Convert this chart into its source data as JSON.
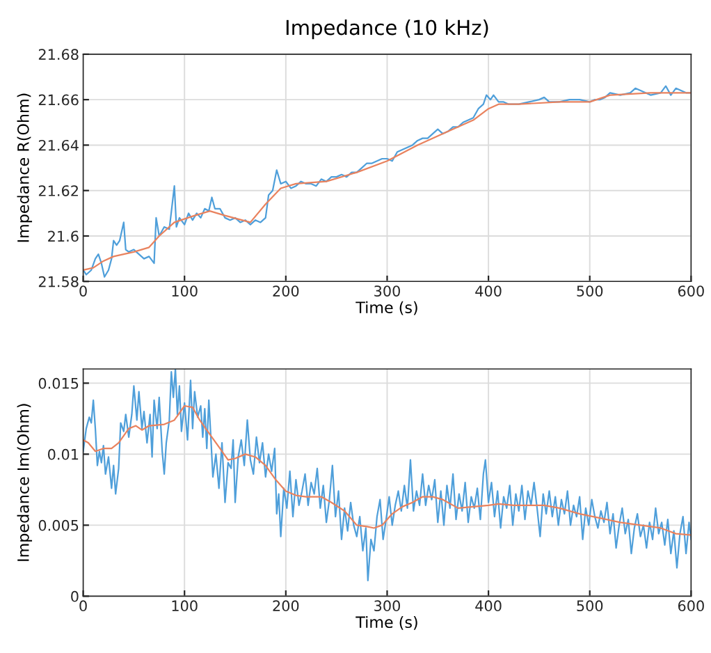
{
  "chart_data": [
    {
      "type": "line",
      "title": "Impedance (10 kHz)",
      "xlabel": "Time (s)",
      "ylabel": "Impedance R(Ohm)",
      "xlim": [
        0,
        600
      ],
      "xticks": [
        0,
        100,
        200,
        300,
        400,
        500,
        600
      ],
      "ylim": [
        21.58,
        21.68
      ],
      "yticks": [
        21.58,
        21.6,
        21.62,
        21.64,
        21.66,
        21.68
      ],
      "grid": true,
      "series": [
        {
          "color": "#4f9fda",
          "x": [
            0,
            3,
            8,
            12,
            15,
            18,
            21,
            25,
            28,
            30,
            33,
            36,
            40,
            42,
            45,
            50,
            55,
            60,
            65,
            70,
            72,
            75,
            80,
            85,
            90,
            92,
            95,
            100,
            104,
            108,
            112,
            116,
            120,
            124,
            127,
            130,
            135,
            140,
            145,
            150,
            155,
            160,
            165,
            170,
            175,
            180,
            183,
            187,
            191,
            195,
            200,
            205,
            210,
            215,
            220,
            225,
            230,
            235,
            240,
            245,
            250,
            255,
            260,
            265,
            270,
            275,
            280,
            285,
            290,
            295,
            300,
            305,
            310,
            315,
            320,
            325,
            330,
            335,
            340,
            345,
            350,
            355,
            360,
            365,
            370,
            375,
            380,
            385,
            390,
            395,
            398,
            402,
            405,
            410,
            415,
            420,
            430,
            440,
            450,
            455,
            460,
            470,
            480,
            490,
            500,
            505,
            510,
            515,
            520,
            530,
            540,
            545,
            550,
            560,
            570,
            575,
            580,
            585,
            590,
            595,
            600
          ],
          "values": [
            21.585,
            21.583,
            21.585,
            21.59,
            21.592,
            21.588,
            21.582,
            21.585,
            21.59,
            21.598,
            21.596,
            21.598,
            21.606,
            21.594,
            21.593,
            21.594,
            21.592,
            21.59,
            21.591,
            21.588,
            21.608,
            21.6,
            21.604,
            21.603,
            21.622,
            21.604,
            21.608,
            21.605,
            21.61,
            21.607,
            21.61,
            21.608,
            21.612,
            21.611,
            21.617,
            21.612,
            21.612,
            21.608,
            21.607,
            21.608,
            21.606,
            21.607,
            21.605,
            21.607,
            21.606,
            21.608,
            21.618,
            21.62,
            21.629,
            21.623,
            21.624,
            21.621,
            21.622,
            21.624,
            21.623,
            21.623,
            21.622,
            21.625,
            21.624,
            21.626,
            21.626,
            21.627,
            21.626,
            21.628,
            21.628,
            21.63,
            21.632,
            21.632,
            21.633,
            21.634,
            21.634,
            21.633,
            21.637,
            21.638,
            21.639,
            21.64,
            21.642,
            21.643,
            21.643,
            21.645,
            21.647,
            21.645,
            21.646,
            21.648,
            21.648,
            21.65,
            21.651,
            21.652,
            21.656,
            21.658,
            21.662,
            21.66,
            21.662,
            21.659,
            21.659,
            21.658,
            21.658,
            21.659,
            21.66,
            21.661,
            21.659,
            21.659,
            21.66,
            21.66,
            21.659,
            21.66,
            21.66,
            21.661,
            21.663,
            21.662,
            21.663,
            21.665,
            21.664,
            21.662,
            21.663,
            21.666,
            21.662,
            21.665,
            21.664,
            21.663,
            21.663
          ]
        },
        {
          "color": "#e9825e",
          "x": [
            0,
            10,
            20,
            30,
            50,
            65,
            75,
            90,
            110,
            125,
            140,
            165,
            180,
            195,
            210,
            240,
            270,
            300,
            330,
            360,
            385,
            400,
            410,
            430,
            470,
            500,
            520,
            560,
            600
          ],
          "values": [
            21.585,
            21.586,
            21.589,
            21.591,
            21.593,
            21.595,
            21.6,
            21.606,
            21.609,
            21.611,
            21.609,
            21.606,
            21.614,
            21.621,
            21.623,
            21.624,
            21.628,
            21.633,
            21.64,
            21.646,
            21.651,
            21.656,
            21.658,
            21.658,
            21.659,
            21.659,
            21.662,
            21.663,
            21.663
          ]
        }
      ]
    },
    {
      "type": "line",
      "xlabel": "Time (s)",
      "ylabel": "Impedance Im(Ohm)",
      "xlim": [
        0,
        600
      ],
      "xticks": [
        0,
        100,
        200,
        300,
        400,
        500,
        600
      ],
      "ylim": [
        0,
        0.016
      ],
      "yticks": [
        0,
        0.005,
        0.01,
        0.015
      ],
      "grid": true,
      "series": [
        {
          "color": "#4f9fda",
          "x": [
            0,
            3,
            6,
            8,
            10,
            12,
            14,
            16,
            18,
            20,
            22,
            25,
            28,
            30,
            32,
            35,
            37,
            40,
            42,
            45,
            48,
            50,
            53,
            55,
            58,
            60,
            63,
            66,
            68,
            70,
            73,
            75,
            78,
            80,
            82,
            85,
            87,
            89,
            91,
            93,
            95,
            97,
            100,
            103,
            106,
            108,
            110,
            113,
            116,
            118,
            120,
            122,
            124,
            126,
            128,
            131,
            134,
            137,
            140,
            143,
            146,
            148,
            150,
            153,
            156,
            159,
            162,
            165,
            168,
            171,
            174,
            177,
            180,
            183,
            186,
            189,
            191,
            193,
            195,
            198,
            201,
            204,
            207,
            210,
            213,
            216,
            219,
            222,
            225,
            228,
            231,
            234,
            237,
            240,
            243,
            246,
            249,
            252,
            255,
            258,
            261,
            264,
            267,
            270,
            273,
            276,
            279,
            281,
            284,
            287,
            290,
            293,
            296,
            299,
            302,
            305,
            308,
            311,
            314,
            317,
            320,
            323,
            326,
            329,
            332,
            335,
            338,
            341,
            344,
            347,
            350,
            353,
            356,
            359,
            362,
            365,
            368,
            371,
            374,
            377,
            380,
            383,
            386,
            389,
            392,
            395,
            397,
            400,
            403,
            406,
            409,
            412,
            415,
            418,
            421,
            424,
            427,
            430,
            433,
            436,
            439,
            442,
            445,
            448,
            451,
            454,
            457,
            460,
            463,
            466,
            469,
            472,
            475,
            478,
            481,
            484,
            487,
            490,
            493,
            496,
            499,
            502,
            505,
            508,
            511,
            514,
            517,
            520,
            523,
            526,
            529,
            532,
            535,
            538,
            541,
            544,
            547,
            550,
            553,
            556,
            559,
            562,
            565,
            568,
            571,
            574,
            577,
            580,
            583,
            586,
            589,
            592,
            595,
            598,
            600
          ],
          "values": [
            0.0102,
            0.0118,
            0.0126,
            0.0122,
            0.0138,
            0.0118,
            0.0092,
            0.0102,
            0.0094,
            0.0106,
            0.0086,
            0.0098,
            0.0076,
            0.0092,
            0.0072,
            0.009,
            0.0122,
            0.0116,
            0.0128,
            0.0112,
            0.0128,
            0.0148,
            0.0124,
            0.0144,
            0.0118,
            0.013,
            0.0108,
            0.0128,
            0.0098,
            0.0138,
            0.0118,
            0.014,
            0.0102,
            0.0086,
            0.0108,
            0.0124,
            0.0158,
            0.014,
            0.016,
            0.0128,
            0.0148,
            0.0116,
            0.0136,
            0.011,
            0.0152,
            0.0118,
            0.0144,
            0.0126,
            0.0134,
            0.0112,
            0.0132,
            0.0104,
            0.0138,
            0.0112,
            0.0084,
            0.01,
            0.0076,
            0.0108,
            0.0066,
            0.0094,
            0.009,
            0.011,
            0.0066,
            0.0098,
            0.011,
            0.0092,
            0.0124,
            0.0096,
            0.0086,
            0.0112,
            0.0094,
            0.0108,
            0.0084,
            0.01,
            0.0088,
            0.0104,
            0.0058,
            0.0072,
            0.0042,
            0.0076,
            0.0062,
            0.0088,
            0.0056,
            0.0082,
            0.0064,
            0.0074,
            0.0086,
            0.0064,
            0.008,
            0.0072,
            0.009,
            0.0062,
            0.0078,
            0.0052,
            0.0068,
            0.0092,
            0.0056,
            0.0074,
            0.004,
            0.0062,
            0.0046,
            0.0066,
            0.005,
            0.0042,
            0.0056,
            0.0032,
            0.0048,
            0.0011,
            0.004,
            0.0032,
            0.0056,
            0.0068,
            0.004,
            0.0054,
            0.007,
            0.005,
            0.0064,
            0.0074,
            0.006,
            0.0078,
            0.0062,
            0.0096,
            0.006,
            0.0074,
            0.0064,
            0.0086,
            0.0064,
            0.0078,
            0.0068,
            0.0082,
            0.0052,
            0.0074,
            0.005,
            0.0078,
            0.0062,
            0.0086,
            0.0054,
            0.0072,
            0.006,
            0.008,
            0.0052,
            0.007,
            0.0062,
            0.0076,
            0.0054,
            0.0086,
            0.0096,
            0.0066,
            0.008,
            0.0056,
            0.0074,
            0.0048,
            0.007,
            0.0062,
            0.0078,
            0.005,
            0.0072,
            0.006,
            0.0078,
            0.0054,
            0.0074,
            0.0064,
            0.008,
            0.0062,
            0.0042,
            0.0072,
            0.0058,
            0.0074,
            0.0056,
            0.007,
            0.005,
            0.0068,
            0.0058,
            0.0074,
            0.005,
            0.0064,
            0.0056,
            0.007,
            0.004,
            0.0062,
            0.005,
            0.0068,
            0.0056,
            0.0048,
            0.006,
            0.0052,
            0.0066,
            0.0044,
            0.0058,
            0.0034,
            0.005,
            0.0062,
            0.0044,
            0.0054,
            0.003,
            0.0048,
            0.0058,
            0.0042,
            0.005,
            0.0034,
            0.0052,
            0.004,
            0.0062,
            0.0044,
            0.0052,
            0.0036,
            0.0054,
            0.003,
            0.0046,
            0.002,
            0.0044,
            0.0056,
            0.003,
            0.0052,
            0.004
          ]
        },
        {
          "color": "#e9825e",
          "x": [
            0,
            5,
            12,
            20,
            28,
            35,
            45,
            52,
            58,
            65,
            80,
            90,
            100,
            108,
            115,
            125,
            135,
            143,
            150,
            160,
            170,
            180,
            190,
            200,
            210,
            220,
            235,
            245,
            258,
            270,
            280,
            287,
            295,
            305,
            315,
            325,
            335,
            345,
            355,
            370,
            385,
            400,
            410,
            425,
            440,
            455,
            470,
            490,
            510,
            530,
            550,
            570,
            585,
            600
          ],
          "values": [
            0.011,
            0.0108,
            0.0102,
            0.0104,
            0.0104,
            0.0108,
            0.0118,
            0.012,
            0.0117,
            0.012,
            0.0121,
            0.0124,
            0.0134,
            0.0133,
            0.0124,
            0.0114,
            0.0104,
            0.0096,
            0.0097,
            0.01,
            0.0098,
            0.0092,
            0.0082,
            0.0074,
            0.0071,
            0.007,
            0.007,
            0.0066,
            0.006,
            0.005,
            0.0049,
            0.0048,
            0.005,
            0.0058,
            0.0063,
            0.0066,
            0.007,
            0.007,
            0.0068,
            0.0062,
            0.0063,
            0.0064,
            0.0065,
            0.0064,
            0.0064,
            0.0064,
            0.0062,
            0.0058,
            0.0055,
            0.0052,
            0.005,
            0.0048,
            0.0044,
            0.0043
          ]
        }
      ]
    }
  ]
}
